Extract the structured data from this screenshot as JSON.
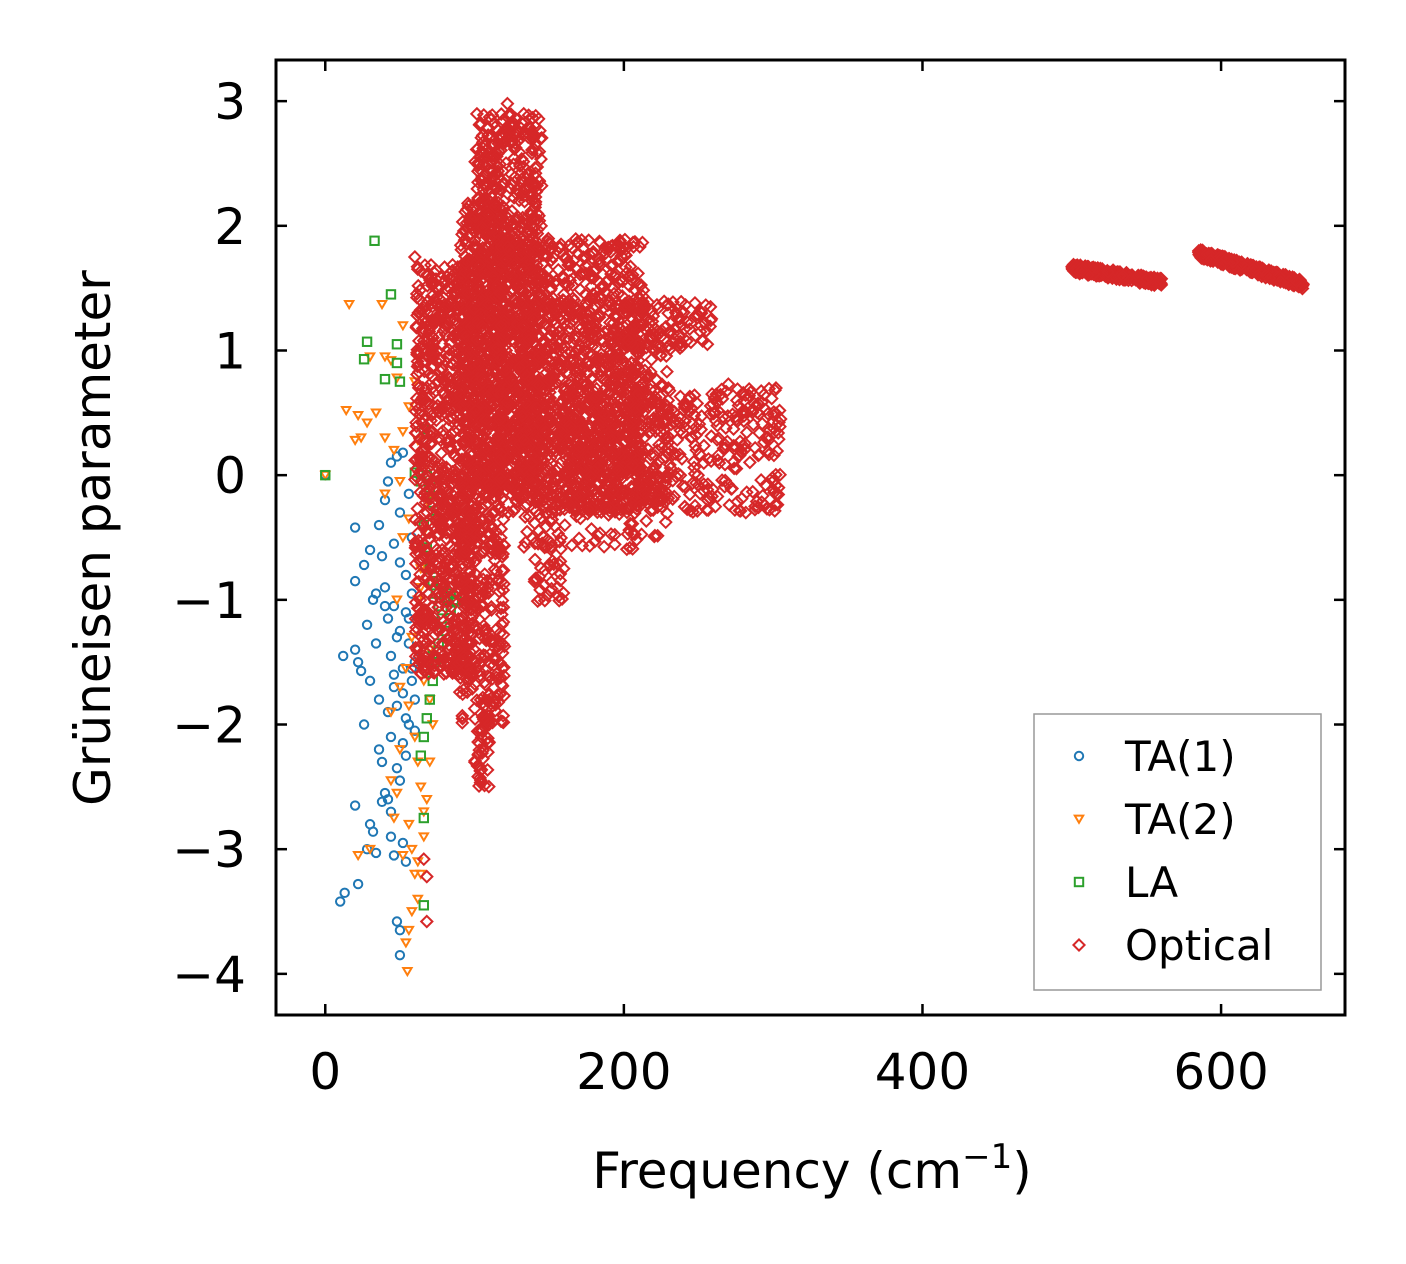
{
  "chart_data": {
    "type": "scatter",
    "title": "",
    "xlabel": "Frequency (cm",
    "xlabel_sup": "−1",
    "xlabel_suffix": ")",
    "ylabel": "Grüneisen parameter",
    "xlim": [
      -33,
      683
    ],
    "ylim": [
      -4.33,
      3.33
    ],
    "xticks": [
      0,
      200,
      400,
      600
    ],
    "xtick_labels": [
      "0",
      "200",
      "400",
      "600"
    ],
    "yticks": [
      3,
      2,
      1,
      0,
      -1,
      -2,
      -3,
      -4
    ],
    "ytick_labels": [
      "3",
      "2",
      "1",
      "0",
      "−1",
      "−2",
      "−3",
      "−4"
    ],
    "grid": false,
    "legend_position": "bottom-right",
    "series": [
      {
        "name": "TA(1)",
        "color": "#1f77b4",
        "marker": "circle",
        "points": [
          [
            0,
            0
          ],
          [
            10,
            -3.42
          ],
          [
            13,
            -3.35
          ],
          [
            20,
            -2.65
          ],
          [
            22,
            -3.28
          ],
          [
            28,
            -3.0
          ],
          [
            30,
            -2.8
          ],
          [
            32,
            -2.86
          ],
          [
            34,
            -3.03
          ],
          [
            36,
            -2.2
          ],
          [
            38,
            -2.62
          ],
          [
            40,
            -2.55
          ],
          [
            42,
            -2.6
          ],
          [
            44,
            -2.9
          ],
          [
            46,
            -3.05
          ],
          [
            48,
            -3.58
          ],
          [
            50,
            -3.65
          ],
          [
            50,
            -3.85
          ],
          [
            52,
            -2.95
          ],
          [
            54,
            -3.1
          ],
          [
            12,
            -1.45
          ],
          [
            20,
            -1.4
          ],
          [
            22,
            -1.5
          ],
          [
            24,
            -1.57
          ],
          [
            26,
            -2.0
          ],
          [
            28,
            -1.2
          ],
          [
            30,
            -1.65
          ],
          [
            32,
            -1.0
          ],
          [
            34,
            -1.35
          ],
          [
            36,
            -1.8
          ],
          [
            38,
            -2.3
          ],
          [
            40,
            -1.05
          ],
          [
            42,
            -1.9
          ],
          [
            44,
            -2.1
          ],
          [
            46,
            -1.6
          ],
          [
            48,
            -1.3
          ],
          [
            50,
            -2.45
          ],
          [
            52,
            -1.75
          ],
          [
            54,
            -2.25
          ],
          [
            56,
            -1.15
          ],
          [
            58,
            -1.55
          ],
          [
            60,
            -2.05
          ],
          [
            20,
            -0.85
          ],
          [
            26,
            -0.72
          ],
          [
            30,
            -0.6
          ],
          [
            34,
            -0.95
          ],
          [
            36,
            -0.4
          ],
          [
            40,
            -0.2
          ],
          [
            42,
            -0.05
          ],
          [
            44,
            0.1
          ],
          [
            46,
            -0.55
          ],
          [
            48,
            0.15
          ],
          [
            50,
            -0.3
          ],
          [
            52,
            0.18
          ],
          [
            54,
            -0.8
          ],
          [
            56,
            -0.15
          ],
          [
            58,
            -0.5
          ],
          [
            20,
            -0.42
          ],
          [
            44,
            -1.45
          ],
          [
            46,
            -1.7
          ],
          [
            48,
            -1.85
          ],
          [
            50,
            -1.25
          ],
          [
            52,
            -1.55
          ],
          [
            54,
            -1.95
          ],
          [
            56,
            -1.35
          ],
          [
            58,
            -1.65
          ],
          [
            60,
            -1.8
          ],
          [
            44,
            -2.7
          ],
          [
            48,
            -2.35
          ],
          [
            52,
            -2.15
          ],
          [
            56,
            -2.0
          ],
          [
            60,
            -1.5
          ],
          [
            38,
            -0.65
          ],
          [
            40,
            -0.9
          ],
          [
            42,
            -1.15
          ],
          [
            46,
            -1.05
          ],
          [
            50,
            -0.7
          ],
          [
            54,
            -1.1
          ],
          [
            58,
            -0.95
          ],
          [
            62,
            -1.4
          ]
        ]
      },
      {
        "name": "TA(2)",
        "color": "#ff7f0e",
        "marker": "triangle-down",
        "points": [
          [
            0,
            0
          ],
          [
            16,
            1.37
          ],
          [
            38,
            1.37
          ],
          [
            52,
            1.2
          ],
          [
            40,
            0.95
          ],
          [
            44,
            0.92
          ],
          [
            48,
            0.78
          ],
          [
            30,
            0.95
          ],
          [
            14,
            0.52
          ],
          [
            22,
            0.48
          ],
          [
            28,
            0.42
          ],
          [
            34,
            0.5
          ],
          [
            40,
            0.3
          ],
          [
            46,
            0.2
          ],
          [
            52,
            0.35
          ],
          [
            56,
            0.55
          ],
          [
            60,
            0.75
          ],
          [
            62,
            0.28
          ],
          [
            66,
            0.05
          ],
          [
            20,
            0.28
          ],
          [
            24,
            0.3
          ],
          [
            40,
            -0.15
          ],
          [
            50,
            -0.05
          ],
          [
            56,
            -0.35
          ],
          [
            60,
            -0.6
          ],
          [
            64,
            -0.9
          ],
          [
            66,
            -1.2
          ],
          [
            68,
            -1.5
          ],
          [
            70,
            -1.8
          ],
          [
            72,
            -2.0
          ],
          [
            60,
            -2.1
          ],
          [
            62,
            -2.3
          ],
          [
            64,
            -2.5
          ],
          [
            66,
            -2.7
          ],
          [
            56,
            -2.8
          ],
          [
            58,
            -3.0
          ],
          [
            60,
            -3.2
          ],
          [
            62,
            -3.4
          ],
          [
            58,
            -3.5
          ],
          [
            56,
            -3.65
          ],
          [
            54,
            -3.75
          ],
          [
            55,
            -3.98
          ],
          [
            22,
            -3.05
          ],
          [
            30,
            -3.0
          ],
          [
            44,
            -2.45
          ],
          [
            48,
            -2.55
          ],
          [
            50,
            -2.2
          ],
          [
            44,
            -1.9
          ],
          [
            50,
            -1.7
          ],
          [
            54,
            -1.55
          ],
          [
            58,
            -1.3
          ],
          [
            62,
            -1.0
          ],
          [
            64,
            -0.75
          ],
          [
            66,
            -0.45
          ],
          [
            68,
            -0.2
          ],
          [
            70,
            -2.3
          ],
          [
            68,
            -2.6
          ],
          [
            66,
            -2.9
          ],
          [
            64,
            -3.2
          ],
          [
            62,
            -3.1
          ],
          [
            66,
            -1.65
          ],
          [
            70,
            -1.4
          ],
          [
            46,
            -2.75
          ],
          [
            52,
            -3.05
          ],
          [
            48,
            -1.0
          ],
          [
            52,
            -0.5
          ],
          [
            56,
            -1.85
          ]
        ]
      },
      {
        "name": "LA",
        "color": "#2ca02c",
        "marker": "square",
        "points": [
          [
            0,
            0
          ],
          [
            33,
            1.88
          ],
          [
            44,
            1.45
          ],
          [
            28,
            1.07
          ],
          [
            48,
            1.05
          ],
          [
            26,
            0.93
          ],
          [
            48,
            0.9
          ],
          [
            40,
            0.77
          ],
          [
            50,
            0.75
          ],
          [
            66,
            0.37
          ],
          [
            60,
            0.02
          ],
          [
            64,
            -0.05
          ],
          [
            68,
            0.0
          ],
          [
            70,
            -0.1
          ],
          [
            72,
            -0.22
          ],
          [
            74,
            -0.35
          ],
          [
            66,
            -0.4
          ],
          [
            68,
            -0.58
          ],
          [
            70,
            -0.75
          ],
          [
            72,
            -0.85
          ],
          [
            74,
            -0.95
          ],
          [
            76,
            -1.05
          ],
          [
            78,
            -1.15
          ],
          [
            80,
            -1.25
          ],
          [
            82,
            -1.0
          ],
          [
            84,
            -0.95
          ],
          [
            86,
            -1.02
          ],
          [
            88,
            -1.0
          ],
          [
            76,
            -1.35
          ],
          [
            74,
            -1.5
          ],
          [
            72,
            -1.65
          ],
          [
            70,
            -1.8
          ],
          [
            68,
            -1.95
          ],
          [
            66,
            -2.1
          ],
          [
            64,
            -2.25
          ],
          [
            66,
            -2.75
          ],
          [
            66,
            -3.45
          ],
          [
            72,
            -1.45
          ],
          [
            78,
            -0.88
          ],
          [
            80,
            -0.98
          ],
          [
            84,
            -1.08
          ]
        ]
      },
      {
        "name": "Optical",
        "color": "#d62728",
        "marker": "diamond",
        "points": [],
        "clouds": [
          {
            "x": [
              60,
              100
            ],
            "y": [
              -1.6,
              1.7
            ],
            "n": 900
          },
          {
            "x": [
              90,
              120
            ],
            "y": [
              -2.0,
              2.2
            ],
            "n": 700
          },
          {
            "x": [
              100,
              145
            ],
            "y": [
              -0.2,
              2.9
            ],
            "n": 900
          },
          {
            "x": [
              115,
              215
            ],
            "y": [
              -0.3,
              1.9
            ],
            "n": 1100
          },
          {
            "x": [
              130,
              230
            ],
            "y": [
              -0.6,
              1.4
            ],
            "n": 500
          },
          {
            "x": [
              160,
              305
            ],
            "y": [
              -0.3,
              0.7
            ],
            "n": 500
          },
          {
            "x": [
              200,
              260
            ],
            "y": [
              1.0,
              1.4
            ],
            "n": 80
          },
          {
            "x": [
              140,
              160
            ],
            "y": [
              -1.05,
              -0.5
            ],
            "n": 40
          },
          {
            "x": [
              100,
              110
            ],
            "y": [
              -2.5,
              -1.9
            ],
            "n": 40
          }
        ],
        "bands": [
          {
            "x": [
              500,
              560
            ],
            "y": [
              1.66,
              1.55
            ],
            "n": 260
          },
          {
            "x": [
              585,
              655
            ],
            "y": [
              1.78,
              1.53
            ],
            "n": 300
          }
        ],
        "extra_points": [
          [
            122,
            2.98
          ],
          [
            60,
            1.75
          ],
          [
            66,
            -3.08
          ],
          [
            68,
            -3.22
          ],
          [
            68,
            -3.58
          ],
          [
            280,
            0.5
          ],
          [
            300,
            0.43
          ],
          [
            305,
            0.45
          ],
          [
            245,
            1.22
          ],
          [
            252,
            1.3
          ],
          [
            258,
            1.35
          ],
          [
            270,
            0.73
          ]
        ]
      }
    ]
  }
}
